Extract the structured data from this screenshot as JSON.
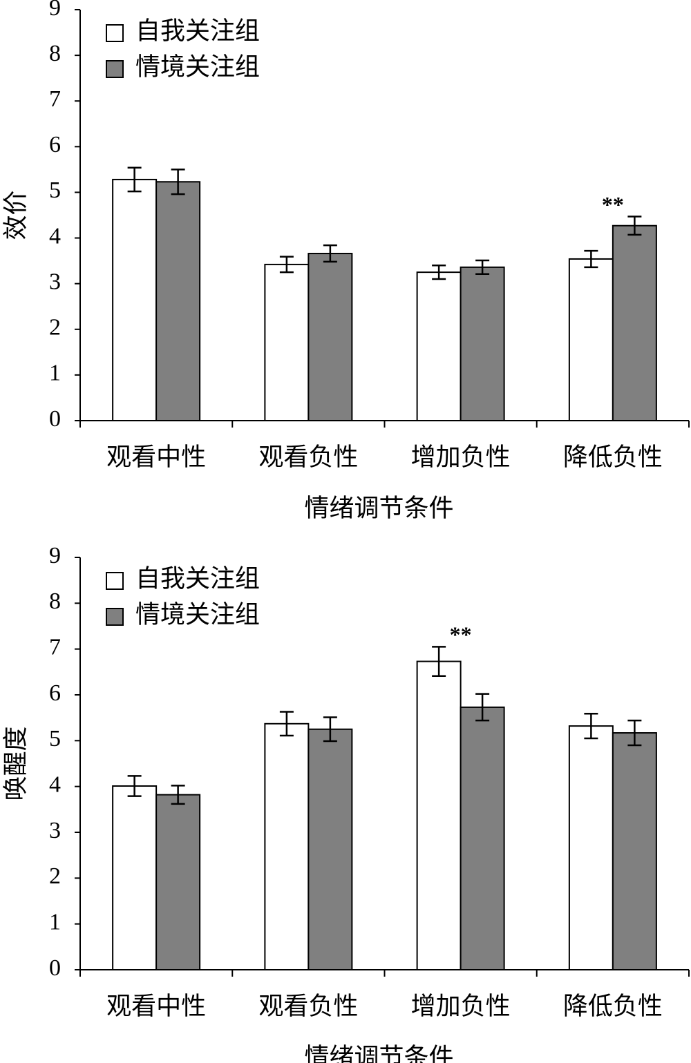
{
  "chart_data": [
    {
      "type": "bar",
      "y_label": "效价",
      "x_label": "情绪调节条件",
      "categories": [
        "观看中性",
        "观看负性",
        "增加负性",
        "降低负性"
      ],
      "series": [
        {
          "name": "自我关注组",
          "color": "#ffffff",
          "values": [
            5.28,
            3.42,
            3.25,
            3.54
          ],
          "errors": [
            0.26,
            0.17,
            0.15,
            0.18
          ]
        },
        {
          "name": "情境关注组",
          "color": "#808080",
          "values": [
            5.23,
            3.66,
            3.36,
            4.27
          ],
          "errors": [
            0.27,
            0.18,
            0.15,
            0.2
          ]
        }
      ],
      "ylim": [
        0,
        9
      ],
      "yticks": [
        0,
        1,
        2,
        3,
        4,
        5,
        6,
        7,
        8,
        9
      ],
      "legend": "upper-left",
      "annotations": [
        {
          "text": "**",
          "category": "降低负性"
        }
      ]
    },
    {
      "type": "bar",
      "y_label": "唤醒度",
      "x_label": "情绪调节条件",
      "categories": [
        "观看中性",
        "观看负性",
        "增加负性",
        "降低负性"
      ],
      "series": [
        {
          "name": "自我关注组",
          "color": "#ffffff",
          "values": [
            4.01,
            5.37,
            6.73,
            5.32
          ],
          "errors": [
            0.22,
            0.26,
            0.32,
            0.27
          ]
        },
        {
          "name": "情境关注组",
          "color": "#808080",
          "values": [
            3.82,
            5.25,
            5.73,
            5.17
          ],
          "errors": [
            0.2,
            0.26,
            0.29,
            0.27
          ]
        }
      ],
      "ylim": [
        0,
        9
      ],
      "yticks": [
        0,
        1,
        2,
        3,
        4,
        5,
        6,
        7,
        8,
        9
      ],
      "legend": "upper-left",
      "annotations": [
        {
          "text": "**",
          "category": "增加负性"
        }
      ]
    }
  ]
}
